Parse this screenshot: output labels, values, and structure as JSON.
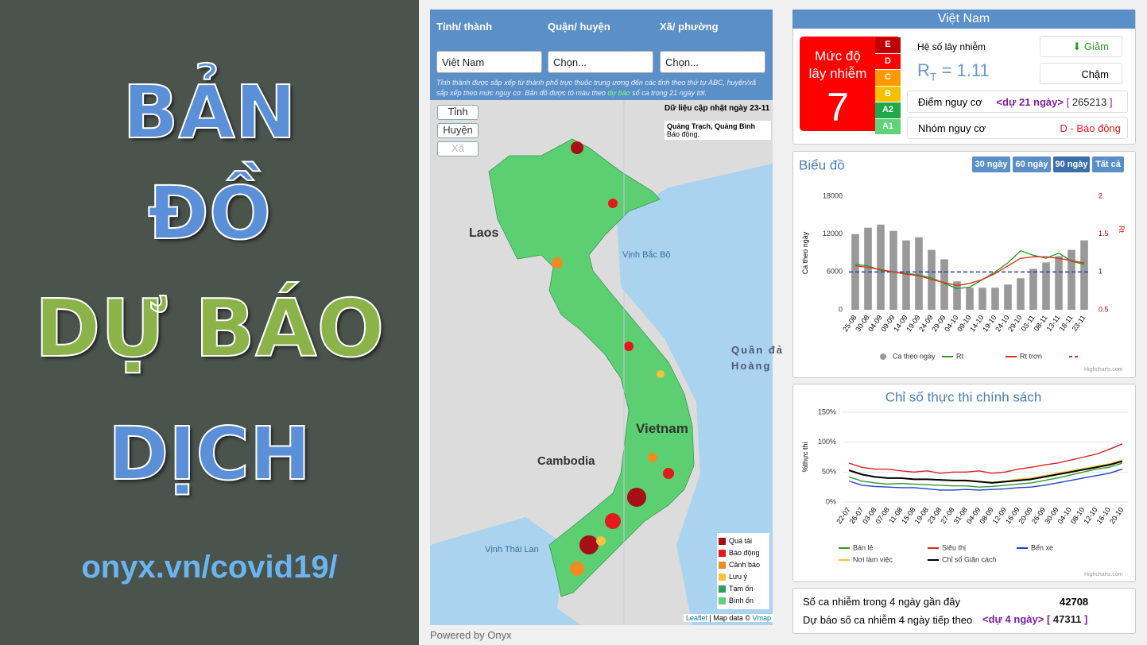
{
  "banner": {
    "lines": [
      "BẢN",
      "ĐỒ",
      "DỰ BÁO",
      "DỊCH"
    ],
    "url": "onyx.vn/covid19/"
  },
  "selectors": {
    "labels": [
      "Tỉnh/ thành",
      "Quận/ huyện",
      "Xã/ phường"
    ],
    "values": [
      "Việt Nam",
      "Chọn...",
      "Chọn..."
    ],
    "note_before": "Tỉnh thành được sắp xếp từ thành phố trực thuộc trung ương đến các tỉnh theo thứ tự ABC, huyện/xã sắp xếp theo mức nguy cơ. Bản đồ được tô màu theo ",
    "note_link": "dự báo",
    "note_after": " số ca trong 21 ngày tới."
  },
  "map": {
    "level_buttons": [
      "Tỉnh",
      "Huyện",
      "Xã"
    ],
    "updated": "Dữ liệu cập nhật ngày 23-11",
    "tooltip_title": "Quảng Trạch, Quảng Bình",
    "tooltip_text": "Báo động.",
    "places": [
      "Laos",
      "Vịnh Bắc Bộ",
      "Quần đả",
      "Hoàng",
      "Vietnam",
      "Cambodia",
      "Vịnh Thái Lan"
    ],
    "legend": [
      {
        "label": "Quá tải",
        "color": "#a50f15"
      },
      {
        "label": "Báo động",
        "color": "#e31a1c"
      },
      {
        "label": "Cảnh báo",
        "color": "#f08a24"
      },
      {
        "label": "Lưu ý",
        "color": "#f9c23c"
      },
      {
        "label": "Tạm ổn",
        "color": "#2aa05a"
      },
      {
        "label": "Bình ổn",
        "color": "#5ed37a"
      }
    ],
    "attribution_link": "Leaflet",
    "attribution": " | Map data © ",
    "attribution_vmap": "Vmap"
  },
  "footer": "Powered by Onyx",
  "summary": {
    "region": "Việt Nam",
    "level_title": "Mức độ lây nhiễm",
    "level": 7,
    "scale": [
      {
        "label": "E",
        "color": "#c00000"
      },
      {
        "label": "D",
        "color": "#ff0000"
      },
      {
        "label": "C",
        "color": "#ff9900"
      },
      {
        "label": "B",
        "color": "#f5c000"
      },
      {
        "label": "A2",
        "color": "#22a84a"
      },
      {
        "label": "A1",
        "color": "#5ed37a"
      }
    ],
    "rt_title": "Hệ số lây nhiễm",
    "rt_symbol": "R",
    "rt_sub": "T",
    "rt_value": "= 1.11",
    "trend": "Giảm",
    "speed": "Chậm",
    "risk_score_label": "Điểm nguy cơ",
    "risk_score_note": "<dự 21 ngày>",
    "risk_score": 265213,
    "risk_group_label": "Nhóm nguy cơ",
    "risk_group": "D - Báo động"
  },
  "chart_panel": {
    "ranges": [
      "30 ngày",
      "60 ngày",
      "90 ngày",
      "Tất cả"
    ],
    "credit": "Highcharts.com"
  },
  "policy_panel": {
    "credit": "Highcharts.com"
  },
  "forecast": {
    "recent_label": "Số ca nhiễm trong 4 ngày gần đây",
    "recent": 42708,
    "next_label": "Dự báo số ca nhiễm 4 ngày tiếp theo",
    "next_note": "<dự 4 ngày>",
    "next": 47311
  },
  "chart_data": [
    {
      "type": "bar",
      "title": "Biểu đồ",
      "ylabel": "Ca theo ngày",
      "y2label": "Rt",
      "categories": [
        "25-08",
        "30-08",
        "04-09",
        "09-09",
        "14-09",
        "19-09",
        "24-09",
        "29-09",
        "04-10",
        "09-10",
        "14-10",
        "19-10",
        "24-10",
        "29-10",
        "03-11",
        "08-11",
        "13-11",
        "18-11",
        "23-11"
      ],
      "ylim": [
        0,
        18000
      ],
      "yticks": [
        0,
        6000,
        12000,
        18000
      ],
      "y2lim": [
        0.5,
        2
      ],
      "y2ticks": [
        0.5,
        1,
        1.5,
        2
      ],
      "series": [
        {
          "name": "Ca theo ngày",
          "type": "bar",
          "color": "#999999",
          "values": [
            12000,
            13000,
            13500,
            12500,
            11000,
            11500,
            9500,
            8000,
            4500,
            3500,
            3500,
            3500,
            4000,
            5000,
            6500,
            7500,
            8500,
            9500,
            11000
          ]
        },
        {
          "name": "Rt",
          "type": "line",
          "axis": "y2",
          "color": "#2a9d2a",
          "values": [
            1.1,
            1.08,
            1.02,
            1.0,
            0.98,
            0.96,
            0.92,
            0.85,
            0.78,
            0.8,
            0.9,
            1.0,
            1.12,
            1.28,
            1.22,
            1.18,
            1.25,
            1.14,
            1.1
          ]
        },
        {
          "name": "Rt trơn",
          "type": "line",
          "axis": "y2",
          "color": "#e0301e",
          "values": [
            1.08,
            1.06,
            1.03,
            1.0,
            0.97,
            0.95,
            0.9,
            0.86,
            0.82,
            0.85,
            0.9,
            0.98,
            1.08,
            1.18,
            1.2,
            1.2,
            1.18,
            1.15,
            1.12
          ]
        }
      ],
      "reference_line": {
        "value": 1,
        "axis": "y2",
        "color": "#2040c0"
      },
      "grid": false
    },
    {
      "type": "line",
      "title": "Chỉ số thực thi chính sách",
      "ylabel": "%thực thi",
      "categories": [
        "22-07",
        "26-07",
        "03-08",
        "07-08",
        "11-08",
        "15-08",
        "19-08",
        "23-08",
        "27-08",
        "31-08",
        "04-09",
        "08-09",
        "12-09",
        "16-09",
        "20-09",
        "26-09",
        "30-09",
        "04-10",
        "08-10",
        "12-10",
        "16-10",
        "20-10"
      ],
      "ylim": [
        0,
        150
      ],
      "yticks": [
        {
          "value": 0,
          "label": "0%"
        },
        {
          "value": 50,
          "label": "50%"
        },
        {
          "value": 100,
          "label": "100%"
        },
        {
          "value": 150,
          "label": "150%"
        }
      ],
      "grid": true,
      "series": [
        {
          "name": "Bán lẻ",
          "color": "#2e9a2e",
          "values": [
            42,
            35,
            32,
            30,
            31,
            30,
            29,
            28,
            27,
            27,
            25,
            26,
            28,
            30,
            32,
            36,
            40,
            45,
            50,
            55,
            58,
            65
          ]
        },
        {
          "name": "Siêu thị",
          "color": "#e02020",
          "values": [
            65,
            58,
            55,
            55,
            52,
            50,
            52,
            48,
            50,
            50,
            52,
            48,
            50,
            55,
            58,
            62,
            65,
            70,
            75,
            80,
            88,
            97
          ]
        },
        {
          "name": "Bến xe",
          "color": "#1f3fd0",
          "values": [
            35,
            28,
            26,
            25,
            24,
            24,
            22,
            20,
            20,
            21,
            20,
            21,
            22,
            24,
            25,
            28,
            32,
            36,
            40,
            44,
            48,
            55
          ]
        },
        {
          "name": "Nơi làm việc",
          "color": "#f2c230",
          "values": [
            52,
            45,
            42,
            40,
            40,
            38,
            38,
            37,
            36,
            35,
            34,
            33,
            35,
            38,
            40,
            44,
            48,
            52,
            56,
            60,
            64,
            70
          ]
        },
        {
          "name": "Chỉ số Giãn cách",
          "color": "#000000",
          "values": [
            53,
            46,
            42,
            40,
            40,
            38,
            38,
            37,
            36,
            36,
            34,
            32,
            34,
            36,
            38,
            42,
            46,
            50,
            54,
            58,
            62,
            68
          ]
        }
      ]
    }
  ]
}
